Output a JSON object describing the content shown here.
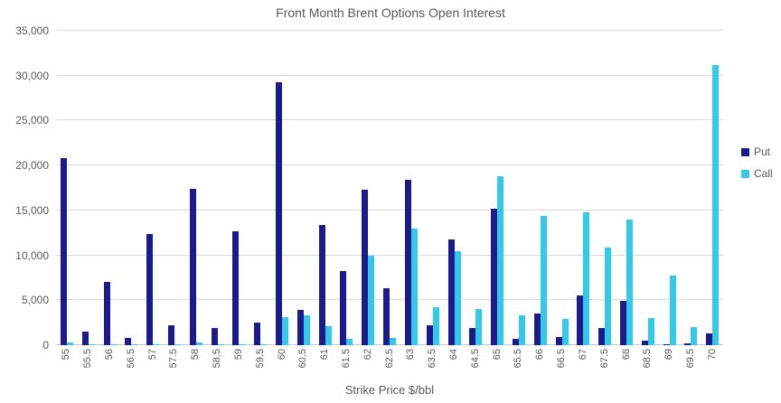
{
  "chart_data": {
    "type": "bar",
    "title": "Front Month Brent Options Open Interest",
    "xlabel": "Strike Price $/bbl",
    "ylabel": "",
    "ylim": [
      0,
      35000
    ],
    "ytick_interval": 5000,
    "ytick_labels": [
      "0",
      "5,000",
      "10,000",
      "15,000",
      "20,000",
      "25,000",
      "30,000",
      "35,000"
    ],
    "grid": true,
    "legend_position": "right",
    "categories": [
      "55",
      "55.5",
      "56",
      "56.5",
      "57",
      "57.5",
      "58",
      "58.5",
      "59",
      "59.5",
      "60",
      "60.5",
      "61",
      "61.5",
      "62",
      "62.5",
      "63",
      "63.5",
      "64",
      "64.5",
      "65",
      "65.5",
      "66",
      "66.5",
      "67",
      "67.5",
      "68",
      "68.5",
      "69",
      "69.5",
      "70"
    ],
    "series": [
      {
        "name": "Put",
        "color": "#1c1b8e",
        "values": [
          20800,
          1500,
          7000,
          800,
          12400,
          2200,
          17400,
          1900,
          12700,
          2500,
          29300,
          3900,
          13400,
          8200,
          17300,
          6300,
          18400,
          2200,
          11800,
          1900,
          15200,
          700,
          3500,
          900,
          5500,
          1900,
          4900,
          500,
          150,
          200,
          1300
        ]
      },
      {
        "name": "Call",
        "color": "#33c9e9",
        "values": [
          300,
          150,
          100,
          50,
          150,
          50,
          350,
          150,
          150,
          150,
          3100,
          3300,
          2100,
          700,
          10000,
          800,
          13000,
          4200,
          10500,
          4000,
          18800,
          3300,
          14400,
          2900,
          14800,
          10900,
          14000,
          3000,
          7700,
          2000,
          31200
        ]
      }
    ],
    "colors": {
      "gridline": "#d9d9d9",
      "axis_line": "#c6c6c6",
      "text": "#595959"
    }
  }
}
